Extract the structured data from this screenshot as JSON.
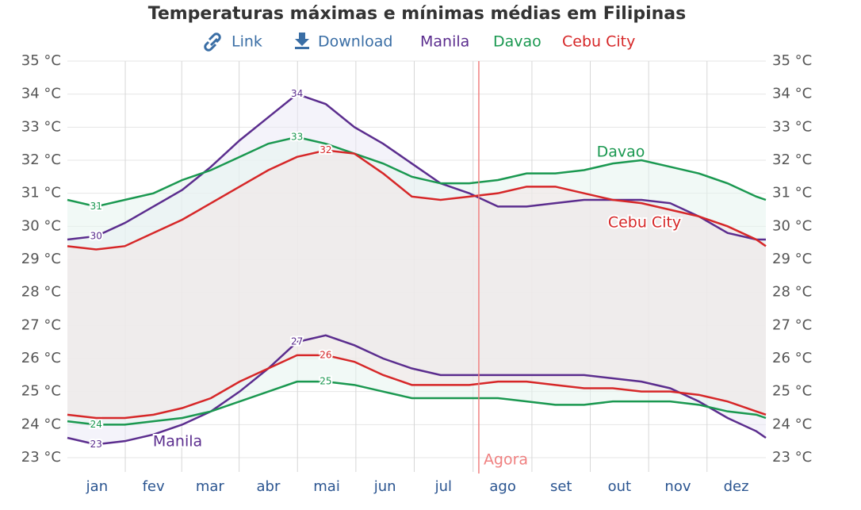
{
  "chart_data": {
    "type": "line",
    "title": "Temperaturas máximas e mínimas médias em Filipinas",
    "links": [
      "Link",
      "Download"
    ],
    "x": [
      0,
      15,
      30,
      45,
      60,
      75,
      90,
      105,
      120,
      135,
      150,
      165,
      180,
      195,
      210,
      225,
      240,
      255,
      270,
      285,
      300,
      315,
      330,
      345,
      360,
      365
    ],
    "xlim": [
      0,
      365
    ],
    "xticks": [
      {
        "value": 15.5,
        "label": "jan"
      },
      {
        "value": 45,
        "label": "fev"
      },
      {
        "value": 74.5,
        "label": "mar"
      },
      {
        "value": 105,
        "label": "abr"
      },
      {
        "value": 135.5,
        "label": "mai"
      },
      {
        "value": 166,
        "label": "jun"
      },
      {
        "value": 196.5,
        "label": "jul"
      },
      {
        "value": 227.5,
        "label": "ago"
      },
      {
        "value": 258,
        "label": "set"
      },
      {
        "value": 288.5,
        "label": "out"
      },
      {
        "value": 319,
        "label": "nov"
      },
      {
        "value": 349.5,
        "label": "dez"
      }
    ],
    "ylim": [
      23,
      35
    ],
    "yticks": [
      {
        "value": 23,
        "label": "23 °C"
      },
      {
        "value": 24,
        "label": "24 °C"
      },
      {
        "value": 25,
        "label": "25 °C"
      },
      {
        "value": 26,
        "label": "26 °C"
      },
      {
        "value": 27,
        "label": "27 °C"
      },
      {
        "value": 28,
        "label": "28 °C"
      },
      {
        "value": 29,
        "label": "29 °C"
      },
      {
        "value": 30,
        "label": "30 °C"
      },
      {
        "value": 31,
        "label": "31 °C"
      },
      {
        "value": 32,
        "label": "32 °C"
      },
      {
        "value": 33,
        "label": "33 °C"
      },
      {
        "value": 34,
        "label": "34 °C"
      },
      {
        "value": 35,
        "label": "35 °C"
      }
    ],
    "grid": true,
    "annotation": {
      "x": 215,
      "label": "Agora",
      "color": "#f08080"
    },
    "series": [
      {
        "name": "Manila",
        "color": "#5b2d8e",
        "fill": "#ebe9f5",
        "max": [
          29.6,
          29.7,
          30.1,
          30.6,
          31.1,
          31.8,
          32.6,
          33.3,
          34.0,
          33.7,
          33.0,
          32.5,
          31.9,
          31.3,
          31.0,
          30.6,
          30.6,
          30.7,
          30.8,
          30.8,
          30.8,
          30.7,
          30.3,
          29.8,
          29.6,
          29.6
        ],
        "max_labels": [
          null,
          "30",
          null,
          null,
          null,
          null,
          null,
          null,
          "34",
          null,
          null,
          null,
          null,
          null,
          null,
          null,
          null,
          null,
          null,
          null,
          null,
          null,
          null,
          null,
          null,
          null
        ],
        "min": [
          23.6,
          23.4,
          23.5,
          23.7,
          24.0,
          24.4,
          25.0,
          25.7,
          26.5,
          26.7,
          26.4,
          26.0,
          25.7,
          25.5,
          25.5,
          25.5,
          25.5,
          25.5,
          25.5,
          25.4,
          25.3,
          25.1,
          24.7,
          24.2,
          23.8,
          23.6
        ],
        "min_labels": [
          null,
          "23",
          null,
          null,
          null,
          null,
          null,
          null,
          "27",
          null,
          null,
          null,
          null,
          null,
          null,
          null,
          null,
          null,
          null,
          null,
          null,
          null,
          null,
          null,
          null,
          null
        ]
      },
      {
        "name": "Davao",
        "color": "#1a9850",
        "fill": "#e6f4ee",
        "max": [
          30.8,
          30.6,
          30.8,
          31.0,
          31.4,
          31.7,
          32.1,
          32.5,
          32.7,
          32.5,
          32.2,
          31.9,
          31.5,
          31.3,
          31.3,
          31.4,
          31.6,
          31.6,
          31.7,
          31.9,
          32.0,
          31.8,
          31.6,
          31.3,
          30.9,
          30.8
        ],
        "max_labels": [
          null,
          "31",
          null,
          null,
          null,
          null,
          null,
          null,
          "33",
          null,
          null,
          null,
          null,
          null,
          null,
          null,
          null,
          null,
          null,
          null,
          null,
          null,
          null,
          null,
          null,
          null
        ],
        "min": [
          24.1,
          24.0,
          24.0,
          24.1,
          24.2,
          24.4,
          24.7,
          25.0,
          25.3,
          25.3,
          25.2,
          25.0,
          24.8,
          24.8,
          24.8,
          24.8,
          24.7,
          24.6,
          24.6,
          24.7,
          24.7,
          24.7,
          24.6,
          24.4,
          24.3,
          24.2
        ],
        "min_labels": [
          null,
          "24",
          null,
          null,
          null,
          null,
          null,
          null,
          null,
          "25",
          null,
          null,
          null,
          null,
          null,
          null,
          null,
          null,
          null,
          null,
          null,
          null,
          null,
          null,
          null,
          null
        ]
      },
      {
        "name": "Cebu City",
        "color": "#d62728",
        "fill": "#f3e6e6",
        "max": [
          29.4,
          29.3,
          29.4,
          29.8,
          30.2,
          30.7,
          31.2,
          31.7,
          32.1,
          32.3,
          32.2,
          31.6,
          30.9,
          30.8,
          30.9,
          31.0,
          31.2,
          31.2,
          31.0,
          30.8,
          30.7,
          30.5,
          30.3,
          30.0,
          29.6,
          29.4
        ],
        "max_labels": [
          null,
          null,
          null,
          null,
          null,
          null,
          null,
          null,
          null,
          "32",
          null,
          null,
          null,
          null,
          null,
          null,
          null,
          null,
          null,
          null,
          null,
          null,
          null,
          null,
          null,
          null
        ],
        "min": [
          24.3,
          24.2,
          24.2,
          24.3,
          24.5,
          24.8,
          25.3,
          25.7,
          26.1,
          26.1,
          25.9,
          25.5,
          25.2,
          25.2,
          25.2,
          25.3,
          25.3,
          25.2,
          25.1,
          25.1,
          25.0,
          25.0,
          24.9,
          24.7,
          24.4,
          24.3
        ],
        "min_labels": [
          null,
          null,
          null,
          null,
          null,
          null,
          null,
          null,
          null,
          "26",
          null,
          null,
          null,
          null,
          null,
          null,
          null,
          null,
          null,
          null,
          null,
          null,
          null,
          null,
          null,
          null
        ]
      }
    ]
  }
}
